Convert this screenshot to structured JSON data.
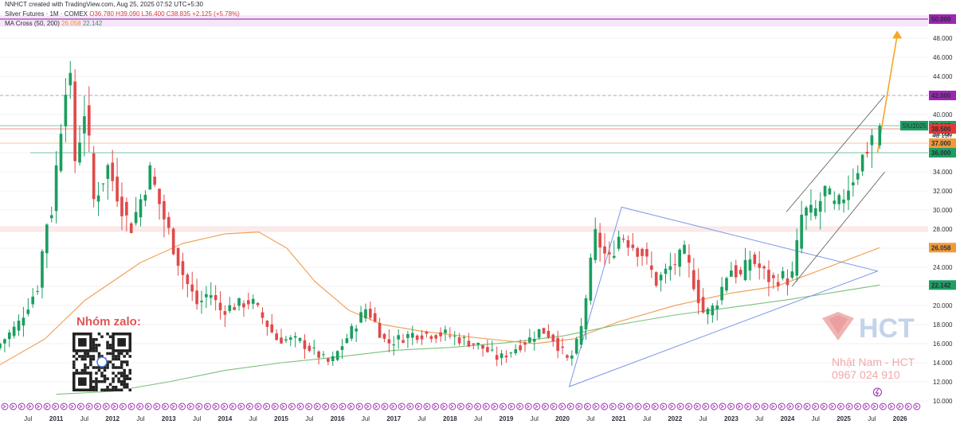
{
  "header": {
    "credit": "NNHCT created with TradingView.com, Aug 25, 2025 07:52 UTC+5:30",
    "symbol_line_prefix": "Silver Futures · 1M · COMEX",
    "ohlc": "O36.780 H39.090 L36.400 C38.835 +2.125 (+5.78%)",
    "ma_label": "MA Cross (50, 200)",
    "ma_fast": "26.058",
    "ma_slow": "22.142"
  },
  "overlay": {
    "zalo_label": "Nhóm zalo:",
    "brand": "HCT",
    "contact_name": "Nhật Nam - HCT",
    "contact_phone": "0967 024 910",
    "countdown": "4d 19h"
  },
  "colors": {
    "up": "#1a9e5f",
    "down": "#e04a4a",
    "ma_fast": "#f0a35a",
    "ma_slow": "#7cc07a",
    "triangle": "#7a96e8",
    "channel": "#555555",
    "arrow": "#f5a623",
    "purple_level": "#9c27b0",
    "green_level": "#1e9e63",
    "red_level": "#e53935",
    "orange_level": "#f29a38"
  },
  "chart_data": {
    "type": "candlestick",
    "interval": "1M",
    "ylim": [
      10,
      50
    ],
    "y_ticks": [
      "10.000",
      "12.000",
      "14.000",
      "16.000",
      "18.000",
      "20.000",
      "22.000",
      "24.000",
      "26.000",
      "28.000",
      "30.000",
      "32.000",
      "34.000",
      "36.000",
      "38.000",
      "40.000",
      "42.000",
      "44.000",
      "46.000",
      "48.000",
      "50.000"
    ],
    "x_labels": [
      {
        "t": 2010.5,
        "label": "Jul"
      },
      {
        "t": 2011.0,
        "label": "2011"
      },
      {
        "t": 2011.5,
        "label": "Jul"
      },
      {
        "t": 2012.0,
        "label": "2012"
      },
      {
        "t": 2012.5,
        "label": "Jul"
      },
      {
        "t": 2013.0,
        "label": "2013"
      },
      {
        "t": 2013.5,
        "label": "Jul"
      },
      {
        "t": 2014.0,
        "label": "2014"
      },
      {
        "t": 2014.5,
        "label": "Jul"
      },
      {
        "t": 2015.0,
        "label": "2015"
      },
      {
        "t": 2015.5,
        "label": "Jul"
      },
      {
        "t": 2016.0,
        "label": "2016"
      },
      {
        "t": 2016.5,
        "label": "Jul"
      },
      {
        "t": 2017.0,
        "label": "2017"
      },
      {
        "t": 2017.5,
        "label": "Jul"
      },
      {
        "t": 2018.0,
        "label": "2018"
      },
      {
        "t": 2018.5,
        "label": "Jul"
      },
      {
        "t": 2019.0,
        "label": "2019"
      },
      {
        "t": 2019.5,
        "label": "Jul"
      },
      {
        "t": 2020.0,
        "label": "2020"
      },
      {
        "t": 2020.5,
        "label": "Jul"
      },
      {
        "t": 2021.0,
        "label": "2021"
      },
      {
        "t": 2021.5,
        "label": "Jul"
      },
      {
        "t": 2022.0,
        "label": "2022"
      },
      {
        "t": 2022.5,
        "label": "Jul"
      },
      {
        "t": 2023.0,
        "label": "2023"
      },
      {
        "t": 2023.5,
        "label": "Jul"
      },
      {
        "t": 2024.0,
        "label": "2024"
      },
      {
        "t": 2024.5,
        "label": "Jul"
      },
      {
        "t": 2025.0,
        "label": "2025"
      },
      {
        "t": 2025.5,
        "label": "Jul"
      },
      {
        "t": 2026.0,
        "label": "2026"
      }
    ],
    "levels": [
      {
        "price": 50.0,
        "label": "50.000",
        "color": "#9c27b0",
        "style": "solid"
      },
      {
        "price": 42.0,
        "label": "42.000",
        "color": "#9c27b0",
        "style": "dashed"
      },
      {
        "price": 38.835,
        "label": "38.835",
        "color": "#1e9e63",
        "style": "solid",
        "tag": "SIU2025"
      },
      {
        "price": 38.5,
        "label": "38.500",
        "color": "#e53935",
        "style": "solid"
      },
      {
        "price": 37.0,
        "label": "37.000",
        "color": "#f29a38",
        "style": "solid"
      },
      {
        "price": 36.0,
        "label": "36.000",
        "color": "#1e9e63",
        "style": "solid"
      },
      {
        "price": 26.058,
        "label": "26.058",
        "color": "#f29a38",
        "style": "label"
      },
      {
        "price": 22.142,
        "label": "22.142",
        "color": "#1e9e63",
        "style": "label"
      }
    ],
    "zones": [
      {
        "from": 49.2,
        "to": 50.4,
        "color": "rgba(200,120,230,0.18)"
      },
      {
        "from": 27.7,
        "to": 28.3,
        "color": "rgba(240,150,150,0.22)"
      }
    ],
    "anchors": [
      {
        "t": 2010.0,
        "p": 15.5
      },
      {
        "t": 2010.4,
        "p": 18.0
      },
      {
        "t": 2010.75,
        "p": 22.0
      },
      {
        "t": 2010.9,
        "p": 28.5
      },
      {
        "t": 2011.0,
        "p": 30.0
      },
      {
        "t": 2011.3,
        "p": 46.0
      },
      {
        "t": 2011.42,
        "p": 35.0
      },
      {
        "t": 2011.6,
        "p": 41.0
      },
      {
        "t": 2011.75,
        "p": 31.0
      },
      {
        "t": 2012.0,
        "p": 34.5
      },
      {
        "t": 2012.4,
        "p": 28.0
      },
      {
        "t": 2012.75,
        "p": 34.0
      },
      {
        "t": 2012.95,
        "p": 30.0
      },
      {
        "t": 2013.35,
        "p": 23.0
      },
      {
        "t": 2013.6,
        "p": 20.0
      },
      {
        "t": 2013.8,
        "p": 21.5
      },
      {
        "t": 2014.0,
        "p": 19.5
      },
      {
        "t": 2014.55,
        "p": 20.5
      },
      {
        "t": 2015.0,
        "p": 16.5
      },
      {
        "t": 2015.4,
        "p": 16.3
      },
      {
        "t": 2015.95,
        "p": 13.9
      },
      {
        "t": 2016.6,
        "p": 19.8
      },
      {
        "t": 2016.95,
        "p": 16.0
      },
      {
        "t": 2017.4,
        "p": 17.0
      },
      {
        "t": 2018.0,
        "p": 17.0
      },
      {
        "t": 2018.6,
        "p": 15.8
      },
      {
        "t": 2018.95,
        "p": 14.4
      },
      {
        "t": 2019.5,
        "p": 16.5
      },
      {
        "t": 2019.7,
        "p": 17.5
      },
      {
        "t": 2019.9,
        "p": 16.7
      },
      {
        "t": 2020.2,
        "p": 14.0
      },
      {
        "t": 2020.4,
        "p": 17.0
      },
      {
        "t": 2020.58,
        "p": 24.0
      },
      {
        "t": 2020.62,
        "p": 28.0
      },
      {
        "t": 2020.9,
        "p": 24.5
      },
      {
        "t": 2021.1,
        "p": 27.5
      },
      {
        "t": 2021.5,
        "p": 25.5
      },
      {
        "t": 2021.75,
        "p": 22.5
      },
      {
        "t": 2022.25,
        "p": 25.5
      },
      {
        "t": 2022.6,
        "p": 19.0
      },
      {
        "t": 2022.8,
        "p": 20.0
      },
      {
        "t": 2023.05,
        "p": 24.0
      },
      {
        "t": 2023.25,
        "p": 23.0
      },
      {
        "t": 2023.42,
        "p": 25.0
      },
      {
        "t": 2023.8,
        "p": 22.5
      },
      {
        "t": 2024.0,
        "p": 23.0
      },
      {
        "t": 2024.15,
        "p": 22.5
      },
      {
        "t": 2024.35,
        "p": 30.0
      },
      {
        "t": 2024.55,
        "p": 29.5
      },
      {
        "t": 2024.75,
        "p": 32.0
      },
      {
        "t": 2024.95,
        "p": 30.0
      },
      {
        "t": 2025.25,
        "p": 33.5
      },
      {
        "t": 2025.5,
        "p": 36.5
      },
      {
        "t": 2025.64,
        "p": 38.835
      }
    ],
    "last_candle": {
      "t": 2025.64,
      "o": 36.78,
      "h": 39.09,
      "l": 36.4,
      "c": 38.835
    },
    "ma_fast": [
      {
        "t": 2010.0,
        "p": 13.8
      },
      {
        "t": 2010.8,
        "p": 16.5
      },
      {
        "t": 2011.5,
        "p": 20.5
      },
      {
        "t": 2012.5,
        "p": 24.5
      },
      {
        "t": 2013.25,
        "p": 26.5
      },
      {
        "t": 2014.0,
        "p": 27.5
      },
      {
        "t": 2014.6,
        "p": 27.7
      },
      {
        "t": 2015.1,
        "p": 26.0
      },
      {
        "t": 2015.6,
        "p": 22.5
      },
      {
        "t": 2016.2,
        "p": 19.5
      },
      {
        "t": 2016.8,
        "p": 18.0
      },
      {
        "t": 2017.5,
        "p": 17.3
      },
      {
        "t": 2018.5,
        "p": 16.6
      },
      {
        "t": 2019.5,
        "p": 16.0
      },
      {
        "t": 2020.2,
        "p": 16.5
      },
      {
        "t": 2021.0,
        "p": 18.3
      },
      {
        "t": 2022.0,
        "p": 20.0
      },
      {
        "t": 2023.0,
        "p": 21.3
      },
      {
        "t": 2023.8,
        "p": 22.0
      },
      {
        "t": 2024.4,
        "p": 23.3
      },
      {
        "t": 2025.64,
        "p": 26.058
      }
    ],
    "ma_slow": [
      {
        "t": 2011.0,
        "p": 10.7
      },
      {
        "t": 2012.0,
        "p": 11.0
      },
      {
        "t": 2013.0,
        "p": 12.0
      },
      {
        "t": 2014.0,
        "p": 13.2
      },
      {
        "t": 2015.0,
        "p": 14.0
      },
      {
        "t": 2016.0,
        "p": 14.6
      },
      {
        "t": 2017.0,
        "p": 15.3
      },
      {
        "t": 2018.0,
        "p": 15.6
      },
      {
        "t": 2019.0,
        "p": 16.1
      },
      {
        "t": 2020.0,
        "p": 16.8
      },
      {
        "t": 2021.0,
        "p": 18.0
      },
      {
        "t": 2022.0,
        "p": 19.0
      },
      {
        "t": 2023.0,
        "p": 19.8
      },
      {
        "t": 2024.0,
        "p": 20.6
      },
      {
        "t": 2025.64,
        "p": 22.142
      }
    ],
    "triangle": [
      {
        "t": 2021.05,
        "p": 30.3
      },
      {
        "t": 2025.6,
        "p": 23.6
      },
      {
        "t": 2020.12,
        "p": 11.5
      }
    ],
    "channel_upper": [
      {
        "t": 2023.98,
        "p": 29.8
      },
      {
        "t": 2025.73,
        "p": 42.0
      }
    ],
    "channel_lower": [
      {
        "t": 2024.08,
        "p": 22.0
      },
      {
        "t": 2025.73,
        "p": 34.0
      }
    ],
    "arrow": [
      {
        "t": 2025.6,
        "p": 36.0
      },
      {
        "t": 2025.95,
        "p": 48.8
      }
    ]
  }
}
